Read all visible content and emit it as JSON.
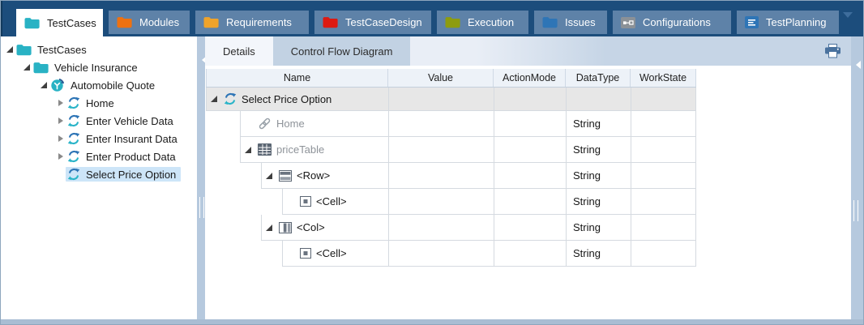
{
  "tab_bar": {
    "tabs": [
      {
        "label": "TestCases",
        "icon": "folder",
        "color": "#29b2c4",
        "active": true,
        "closable": true,
        "close_glyph": "✕"
      },
      {
        "label": "Modules",
        "icon": "folder",
        "color": "#ee7110",
        "active": false
      },
      {
        "label": "Requirements",
        "icon": "folder",
        "color": "#efa32a",
        "active": false
      },
      {
        "label": "TestCaseDesign",
        "icon": "folder",
        "color": "#dd1a12",
        "active": false
      },
      {
        "label": "Execution",
        "icon": "folder",
        "color": "#8d9c10",
        "active": false
      },
      {
        "label": "Issues",
        "icon": "folder",
        "color": "#2e75b6",
        "active": false
      },
      {
        "label": "Configurations",
        "icon": "configurations",
        "color": "#8b9197",
        "active": false
      },
      {
        "label": "TestPlanning",
        "icon": "testplanning",
        "color": "#2e75b6",
        "active": false
      }
    ],
    "overflow_icon": "chevron-down"
  },
  "tree": {
    "items": [
      {
        "label": "TestCases",
        "level": 0,
        "icon": "folder",
        "color": "#29b2c4",
        "expander": "expanded",
        "selected": false
      },
      {
        "label": "Vehicle Insurance",
        "level": 1,
        "icon": "folder",
        "color": "#29b2c4",
        "expander": "expanded",
        "selected": false
      },
      {
        "label": "Automobile Quote",
        "level": 2,
        "icon": "quote",
        "expander": "expanded",
        "selected": false
      },
      {
        "label": "Home",
        "level": 3,
        "icon": "sync",
        "expander": "collapsed",
        "selected": false
      },
      {
        "label": "Enter Vehicle Data",
        "level": 3,
        "icon": "sync",
        "expander": "collapsed",
        "selected": false
      },
      {
        "label": "Enter Insurant Data",
        "level": 3,
        "icon": "sync",
        "expander": "collapsed",
        "selected": false
      },
      {
        "label": "Enter Product Data",
        "level": 3,
        "icon": "sync",
        "expander": "collapsed",
        "selected": false
      },
      {
        "label": "Select Price Option",
        "level": 3,
        "icon": "sync",
        "expander": "none",
        "selected": true
      }
    ]
  },
  "details": {
    "tabs": [
      {
        "label": "Details",
        "active": true
      },
      {
        "label": "Control Flow Diagram",
        "active": false
      }
    ],
    "print_icon": "printer"
  },
  "grid": {
    "columns": [
      "Name",
      "Value",
      "ActionMode",
      "DataType",
      "WorkState"
    ],
    "rows": [
      {
        "name": "Select Price Option",
        "icon": "sync",
        "level": 0,
        "expander": "expanded",
        "value": "",
        "action_mode": "",
        "data_type": "",
        "work_state": "",
        "highlight": true,
        "muted": false
      },
      {
        "name": "Home",
        "icon": "link",
        "level": 1,
        "expander": "none",
        "value": "",
        "action_mode": "",
        "data_type": "String",
        "work_state": "",
        "highlight": false,
        "muted": true
      },
      {
        "name": "priceTable",
        "icon": "table",
        "level": 1,
        "expander": "expanded",
        "value": "",
        "action_mode": "",
        "data_type": "String",
        "work_state": "",
        "highlight": false,
        "muted": true
      },
      {
        "name": "<Row>",
        "icon": "row",
        "level": 2,
        "expander": "expanded",
        "value": "",
        "action_mode": "",
        "data_type": "String",
        "work_state": "",
        "highlight": false,
        "muted": false
      },
      {
        "name": "<Cell>",
        "icon": "cell",
        "level": 3,
        "expander": "none",
        "value": "",
        "action_mode": "",
        "data_type": "String",
        "work_state": "",
        "highlight": false,
        "muted": false
      },
      {
        "name": "<Col>",
        "icon": "col",
        "level": 2,
        "expander": "expanded",
        "value": "",
        "action_mode": "",
        "data_type": "String",
        "work_state": "",
        "highlight": false,
        "muted": false
      },
      {
        "name": "<Cell>",
        "icon": "cell",
        "level": 3,
        "expander": "none",
        "value": "",
        "action_mode": "",
        "data_type": "String",
        "work_state": "",
        "highlight": false,
        "muted": false
      }
    ]
  },
  "colors": {
    "titlebar": "#1c4d7c",
    "inactive_tab": "#5e82a8",
    "active_tab": "#ffffff",
    "splitter": "#b6c9de",
    "tree_selection": "#cde5f8",
    "grid_highlight_row": "#e7e7e7",
    "accent_teal": "#29b2c4",
    "accent_blue": "#2e75b6",
    "bottom_bar": "#a9bdd3"
  }
}
